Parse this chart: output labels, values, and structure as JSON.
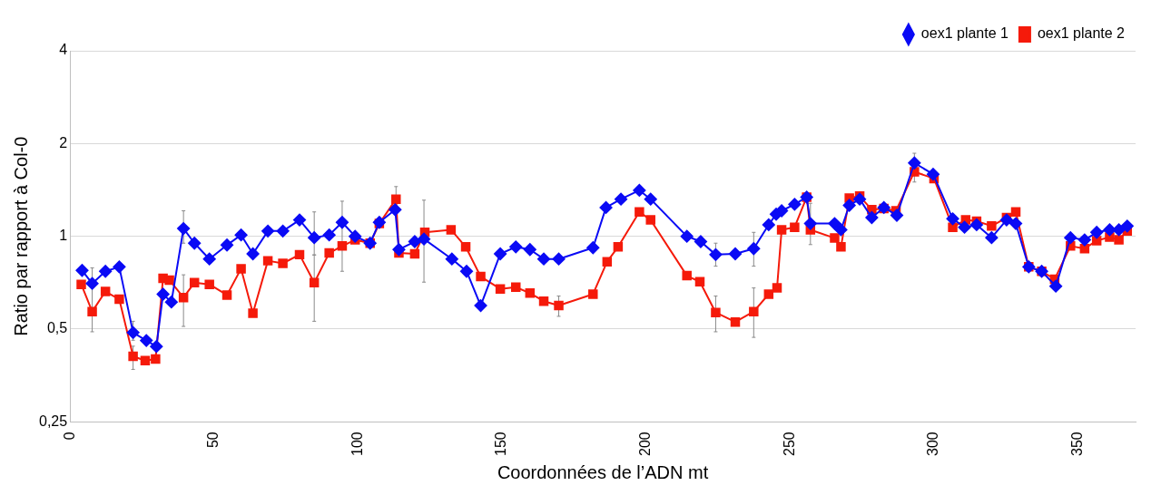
{
  "chart_data": {
    "type": "line",
    "xlabel": "Coordonnées de l’ADN mt",
    "ylabel": "Ratio par rapport à Col-0",
    "log": "y",
    "grid": "y",
    "legend": "top right",
    "xlim": [
      0,
      370
    ],
    "xticks": [
      0,
      50,
      100,
      150,
      200,
      250,
      300,
      350
    ],
    "ylim": [
      0.25,
      4
    ],
    "yticks": [
      {
        "value": 0.25,
        "label": "0,25"
      },
      {
        "value": 0.5,
        "label": "0,5"
      },
      1,
      2,
      4
    ],
    "series": [
      {
        "name": "oex1 plante 1",
        "color": "#0a0af5",
        "marker": "diamond",
        "x": [
          4.2,
          7.7,
          12.3,
          17.1,
          21.9,
          26.5,
          30,
          32.3,
          35.2,
          39.4,
          43.2,
          48.4,
          54.5,
          59.4,
          63.5,
          68.7,
          73.9,
          79.7,
          84.8,
          90,
          94.5,
          99,
          104.2,
          107.4,
          112.9,
          114.2,
          119.7,
          122.9,
          132.6,
          137.7,
          142.6,
          149.4,
          154.8,
          159.7,
          164.5,
          169.7,
          181.6,
          186.1,
          191.3,
          197.7,
          201.6,
          214.2,
          219,
          224.2,
          231,
          237.4,
          242.6,
          245.2,
          247.1,
          251.6,
          255.8,
          257.1,
          265.5,
          267.7,
          270.6,
          274.2,
          278.4,
          282.6,
          287.1,
          293.2,
          299.7,
          306.5,
          310.6,
          314.8,
          320,
          325.2,
          328.4,
          332.9,
          337.4,
          342.3,
          347.4,
          352.3,
          356.5,
          361,
          364.2,
          367.1
        ],
        "values": [
          0.775,
          0.703,
          0.77,
          0.796,
          0.487,
          0.459,
          0.439,
          0.649,
          0.612,
          1.06,
          0.95,
          0.844,
          0.937,
          1.01,
          0.877,
          1.04,
          1.04,
          1.13,
          0.99,
          1.01,
          1.11,
          1.0,
          0.95,
          1.11,
          1.22,
          0.906,
          0.961,
          0.98,
          0.844,
          0.77,
          0.596,
          0.877,
          0.924,
          0.906,
          0.844,
          0.844,
          0.918,
          1.24,
          1.32,
          1.41,
          1.32,
          1.0,
          0.961,
          0.872,
          0.877,
          0.912,
          1.09,
          1.18,
          1.21,
          1.27,
          1.34,
          1.1,
          1.1,
          1.05,
          1.26,
          1.32,
          1.15,
          1.24,
          1.17,
          1.73,
          1.59,
          1.14,
          1.07,
          1.09,
          0.99,
          1.13,
          1.1,
          0.796,
          0.77,
          0.689,
          0.99,
          0.974,
          1.03,
          1.05,
          1.05,
          1.08
        ],
        "errors": [
          null,
          null,
          null,
          null,
          [
            0.46,
            0.53
          ],
          null,
          null,
          null,
          null,
          [
            0.95,
            1.21
          ],
          null,
          null,
          null,
          null,
          null,
          null,
          null,
          null,
          [
            0.87,
            1.2
          ],
          null,
          null,
          null,
          null,
          null,
          null,
          null,
          null,
          [
            0.71,
            1.31
          ],
          null,
          null,
          null,
          null,
          null,
          null,
          null,
          null,
          null,
          null,
          null,
          null,
          null,
          null,
          null,
          [
            0.8,
            0.95
          ],
          null,
          [
            0.8,
            1.03
          ],
          null,
          null,
          null,
          null,
          null,
          [
            0.94,
            1.28
          ],
          null,
          null,
          null,
          null,
          null,
          null,
          null,
          [
            1.65,
            1.86
          ],
          null,
          null,
          null,
          null,
          null,
          null,
          null,
          null,
          null,
          null,
          null,
          null,
          null,
          null,
          null,
          null
        ]
      },
      {
        "name": "oex1 plante 2",
        "color": "#f51a0a",
        "marker": "square",
        "x": [
          3.9,
          7.7,
          12.3,
          17.1,
          21.9,
          26.1,
          29.7,
          32.3,
          34.5,
          39.4,
          43.2,
          48.4,
          54.5,
          59.4,
          63.5,
          68.7,
          73.9,
          79.7,
          84.8,
          90,
          94.5,
          99,
          104.2,
          107.4,
          113.2,
          114.2,
          119.7,
          123.2,
          132.3,
          137.4,
          142.6,
          149.4,
          154.8,
          159.7,
          164.5,
          169.7,
          181.6,
          186.5,
          190.3,
          197.7,
          201.6,
          214.2,
          218.7,
          224.2,
          231,
          237.4,
          242.6,
          245.5,
          247.1,
          251.6,
          255.8,
          257.1,
          265.5,
          267.7,
          270.6,
          274.2,
          278.4,
          282.6,
          286.8,
          293.2,
          300,
          306.5,
          311,
          314.8,
          320,
          325.2,
          328.4,
          332.9,
          337.4,
          341.9,
          347.4,
          352.3,
          356.5,
          361,
          364.2,
          367.1
        ],
        "values": [
          0.698,
          0.57,
          0.662,
          0.625,
          0.408,
          0.395,
          0.4,
          0.73,
          0.721,
          0.633,
          0.707,
          0.698,
          0.645,
          0.785,
          0.563,
          0.833,
          0.817,
          0.872,
          0.707,
          0.883,
          0.93,
          0.974,
          0.95,
          1.1,
          1.32,
          0.883,
          0.877,
          1.03,
          1.05,
          0.924,
          0.74,
          0.675,
          0.684,
          0.654,
          0.616,
          0.596,
          0.649,
          0.827,
          0.924,
          1.2,
          1.13,
          0.745,
          0.712,
          0.566,
          0.527,
          0.57,
          0.649,
          0.68,
          1.05,
          1.07,
          1.34,
          1.05,
          0.987,
          0.924,
          1.33,
          1.35,
          1.22,
          1.23,
          1.21,
          1.62,
          1.54,
          1.07,
          1.13,
          1.12,
          1.08,
          1.15,
          1.2,
          0.796,
          0.77,
          0.726,
          0.93,
          0.912,
          0.968,
          0.994,
          0.974,
          1.04
        ],
        "errors": [
          null,
          [
            0.49,
            0.79
          ],
          null,
          null,
          [
            0.37,
            0.44
          ],
          null,
          null,
          null,
          null,
          [
            0.51,
            0.75
          ],
          null,
          null,
          null,
          null,
          null,
          null,
          null,
          null,
          [
            0.53,
            0.87
          ],
          null,
          [
            0.77,
            1.3
          ],
          null,
          null,
          null,
          [
            1.2,
            1.45
          ],
          null,
          null,
          null,
          null,
          null,
          null,
          null,
          null,
          null,
          null,
          [
            0.55,
            0.64
          ],
          null,
          null,
          null,
          null,
          null,
          null,
          null,
          [
            0.49,
            0.64
          ],
          null,
          [
            0.47,
            0.68
          ],
          null,
          null,
          null,
          null,
          null,
          null,
          null,
          null,
          null,
          null,
          null,
          null,
          null,
          [
            1.5,
            1.7
          ],
          null,
          null,
          null,
          null,
          null,
          null,
          null,
          null,
          null,
          null,
          null,
          null,
          null,
          null,
          null,
          null
        ]
      }
    ]
  }
}
